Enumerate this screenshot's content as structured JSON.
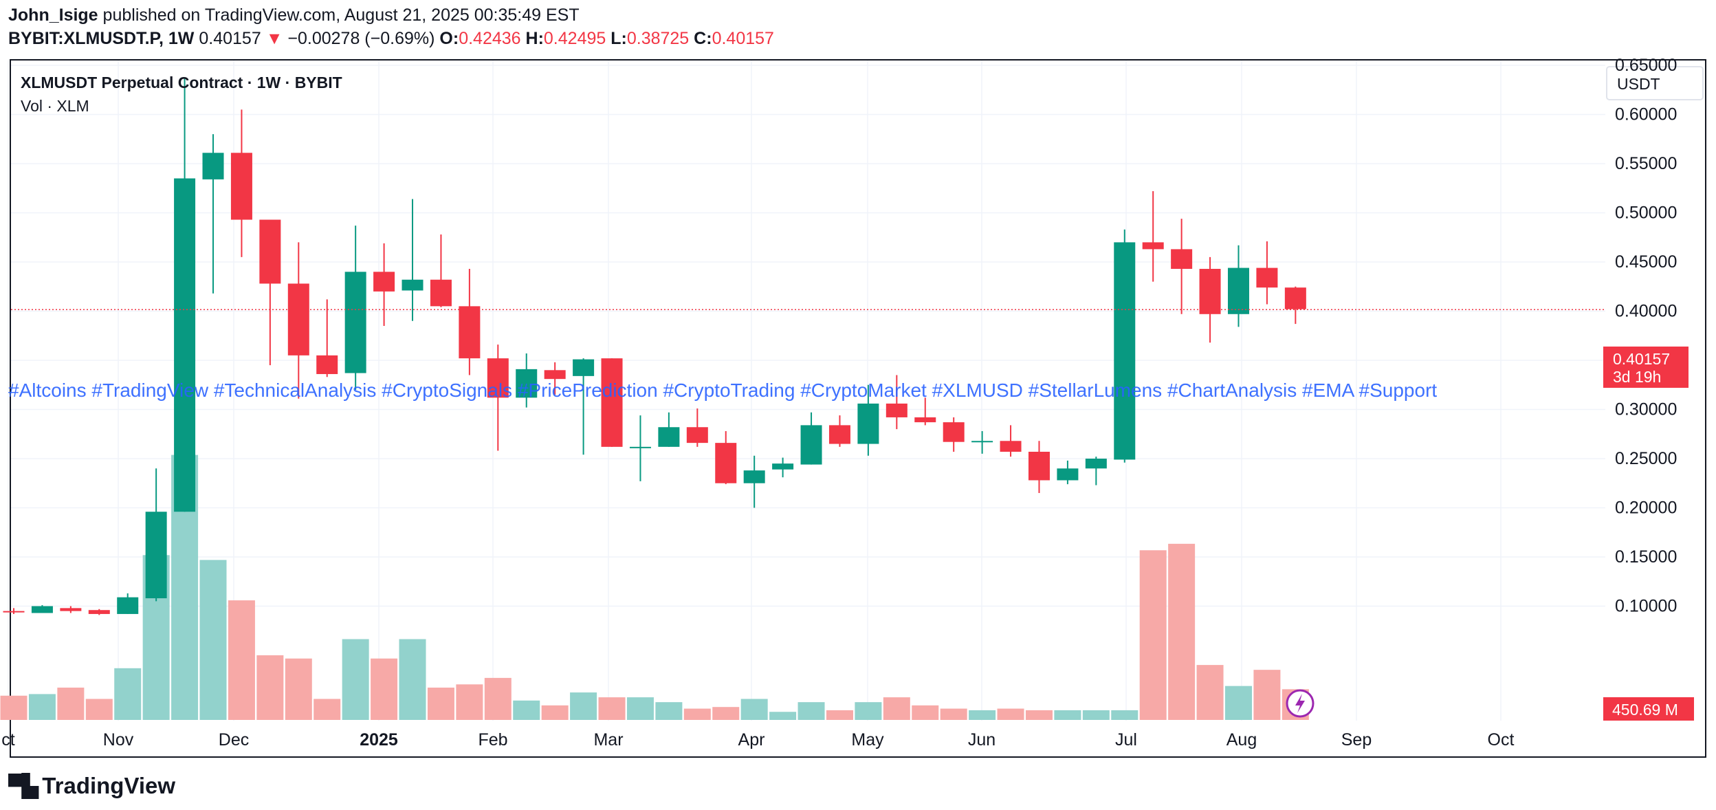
{
  "header": {
    "author": "John_Isige",
    "published": "published on TradingView.com, August 21, 2025 00:35:49 EST",
    "symbol": "BYBIT:XLMUSDT.P, 1W",
    "last": "0.40157",
    "change_arrow": "▼",
    "change": "−0.00278 (−0.69%)",
    "o_label": "O:",
    "o": "0.42436",
    "h_label": "H:",
    "h": "0.42495",
    "l_label": "L:",
    "l": "0.38725",
    "c_label": "C:",
    "c": "0.40157"
  },
  "footer": {
    "brand": "TradingView",
    "logo_icon": "tradingview-logo-icon"
  },
  "colors": {
    "up": "#089981",
    "down": "#f23645",
    "vol_up": "#92d2cc",
    "vol_down": "#f7a9a7",
    "hashtags": "#2962ff"
  },
  "chart_data": {
    "type": "candlestick",
    "title": "XLMUSDT Perpetual Contract · 1W · BYBIT",
    "subtitle": "Vol · XLM",
    "currency": "USDT",
    "y_ticks": [
      "0.65000",
      "0.60000",
      "0.55000",
      "0.50000",
      "0.45000",
      "0.40000",
      "0.35000",
      "0.30000",
      "0.25000",
      "0.20000",
      "0.15000",
      "0.10000"
    ],
    "ylim": [
      0.0375,
      0.6875
    ],
    "x_ticks": [
      "ct",
      "Nov",
      "Dec",
      "2025",
      "Feb",
      "Mar",
      "Apr",
      "May",
      "Jun",
      "Jul",
      "Aug",
      "Sep",
      "Oct"
    ],
    "last_price_label": "0.40157",
    "countdown": "3d 19h",
    "volume_label": "450.69 M",
    "hashtags": "#Altcoins #TradingView #TechnicalAnalysis #CryptoSignals #PricePrediction #CryptoTrading #CryptoMarket #XLMUSD #StellarLumens #ChartAnalysis #EMA #Support",
    "candles": [
      {
        "o": 0.095,
        "h": 0.098,
        "l": 0.092,
        "c": 0.094
      },
      {
        "o": 0.093,
        "h": 0.101,
        "l": 0.093,
        "c": 0.1
      },
      {
        "o": 0.098,
        "h": 0.1,
        "l": 0.093,
        "c": 0.095
      },
      {
        "o": 0.096,
        "h": 0.097,
        "l": 0.091,
        "c": 0.092
      },
      {
        "o": 0.092,
        "h": 0.113,
        "l": 0.092,
        "c": 0.109
      },
      {
        "o": 0.108,
        "h": 0.24,
        "l": 0.105,
        "c": 0.196
      },
      {
        "o": 0.196,
        "h": 0.637,
        "l": 0.196,
        "c": 0.535
      },
      {
        "o": 0.534,
        "h": 0.58,
        "l": 0.418,
        "c": 0.561
      },
      {
        "o": 0.561,
        "h": 0.605,
        "l": 0.455,
        "c": 0.493
      },
      {
        "o": 0.493,
        "h": 0.493,
        "l": 0.345,
        "c": 0.428
      },
      {
        "o": 0.428,
        "h": 0.47,
        "l": 0.311,
        "c": 0.355
      },
      {
        "o": 0.355,
        "h": 0.412,
        "l": 0.333,
        "c": 0.336
      },
      {
        "o": 0.337,
        "h": 0.487,
        "l": 0.32,
        "c": 0.44
      },
      {
        "o": 0.44,
        "h": 0.469,
        "l": 0.385,
        "c": 0.42
      },
      {
        "o": 0.421,
        "h": 0.514,
        "l": 0.39,
        "c": 0.432
      },
      {
        "o": 0.432,
        "h": 0.478,
        "l": 0.404,
        "c": 0.405
      },
      {
        "o": 0.405,
        "h": 0.443,
        "l": 0.335,
        "c": 0.352
      },
      {
        "o": 0.352,
        "h": 0.366,
        "l": 0.258,
        "c": 0.312
      },
      {
        "o": 0.312,
        "h": 0.357,
        "l": 0.302,
        "c": 0.341
      },
      {
        "o": 0.34,
        "h": 0.348,
        "l": 0.315,
        "c": 0.331
      },
      {
        "o": 0.334,
        "h": 0.352,
        "l": 0.254,
        "c": 0.351
      },
      {
        "o": 0.352,
        "h": 0.352,
        "l": 0.262,
        "c": 0.262
      },
      {
        "o": 0.262,
        "h": 0.294,
        "l": 0.227,
        "c": 0.262
      },
      {
        "o": 0.262,
        "h": 0.297,
        "l": 0.262,
        "c": 0.282
      },
      {
        "o": 0.282,
        "h": 0.301,
        "l": 0.262,
        "c": 0.266
      },
      {
        "o": 0.266,
        "h": 0.278,
        "l": 0.224,
        "c": 0.225
      },
      {
        "o": 0.225,
        "h": 0.253,
        "l": 0.2,
        "c": 0.238
      },
      {
        "o": 0.239,
        "h": 0.251,
        "l": 0.231,
        "c": 0.245
      },
      {
        "o": 0.244,
        "h": 0.297,
        "l": 0.244,
        "c": 0.284
      },
      {
        "o": 0.284,
        "h": 0.294,
        "l": 0.262,
        "c": 0.265
      },
      {
        "o": 0.265,
        "h": 0.325,
        "l": 0.253,
        "c": 0.306
      },
      {
        "o": 0.306,
        "h": 0.335,
        "l": 0.28,
        "c": 0.292
      },
      {
        "o": 0.292,
        "h": 0.312,
        "l": 0.284,
        "c": 0.287
      },
      {
        "o": 0.287,
        "h": 0.292,
        "l": 0.257,
        "c": 0.267
      },
      {
        "o": 0.267,
        "h": 0.278,
        "l": 0.255,
        "c": 0.268
      },
      {
        "o": 0.268,
        "h": 0.284,
        "l": 0.252,
        "c": 0.257
      },
      {
        "o": 0.257,
        "h": 0.268,
        "l": 0.215,
        "c": 0.228
      },
      {
        "o": 0.228,
        "h": 0.248,
        "l": 0.224,
        "c": 0.24
      },
      {
        "o": 0.24,
        "h": 0.252,
        "l": 0.223,
        "c": 0.25
      },
      {
        "o": 0.249,
        "h": 0.483,
        "l": 0.246,
        "c": 0.47
      },
      {
        "o": 0.47,
        "h": 0.522,
        "l": 0.43,
        "c": 0.463
      },
      {
        "o": 0.463,
        "h": 0.494,
        "l": 0.397,
        "c": 0.443
      },
      {
        "o": 0.443,
        "h": 0.455,
        "l": 0.368,
        "c": 0.397
      },
      {
        "o": 0.397,
        "h": 0.467,
        "l": 0.384,
        "c": 0.444
      },
      {
        "o": 0.444,
        "h": 0.471,
        "l": 0.407,
        "c": 0.424
      },
      {
        "o": 0.424,
        "h": 0.425,
        "l": 0.387,
        "c": 0.402
      }
    ],
    "volumes_m": [
      150,
      160,
      200,
      130,
      320,
      1020,
      1640,
      990,
      740,
      400,
      380,
      130,
      500,
      380,
      500,
      200,
      220,
      260,
      120,
      90,
      170,
      140,
      140,
      110,
      70,
      80,
      130,
      50,
      110,
      60,
      110,
      140,
      90,
      70,
      60,
      70,
      60,
      60,
      60,
      60,
      1050,
      1090,
      340,
      210,
      310,
      190
    ]
  }
}
